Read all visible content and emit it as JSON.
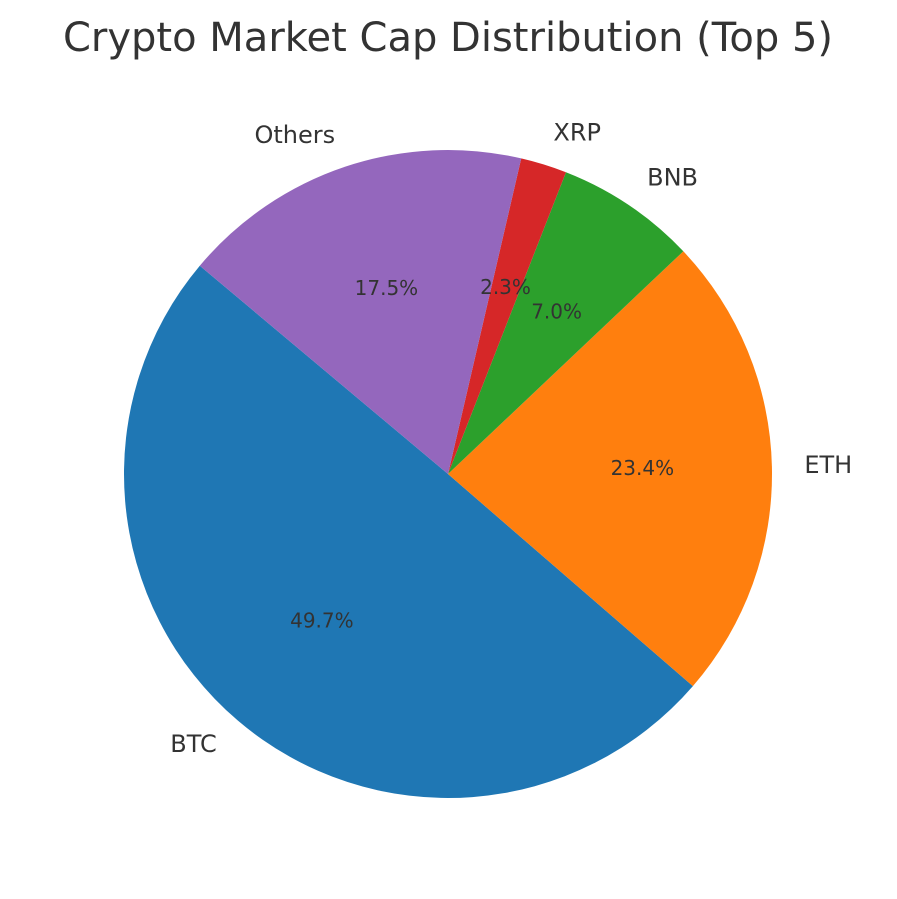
{
  "chart_data": {
    "type": "pie",
    "title": "Crypto Market Cap Distribution (Top 5)",
    "categories": [
      "BTC",
      "ETH",
      "BNB",
      "XRP",
      "Others"
    ],
    "values": [
      49.7,
      23.4,
      7.0,
      2.3,
      17.5
    ],
    "value_labels": [
      "49.7%",
      "23.4%",
      "7.0%",
      "2.3%",
      "17.5%"
    ],
    "colors": [
      "#1f77b4",
      "#ff7f0e",
      "#2ca02c",
      "#d62728",
      "#9467bd"
    ],
    "start_angle": 140
  }
}
